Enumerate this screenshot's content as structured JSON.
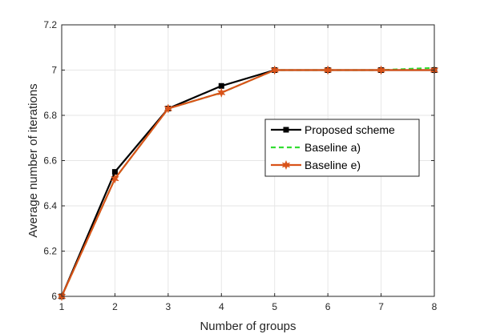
{
  "chart_data": {
    "type": "line",
    "xlabel": "Number of groups",
    "ylabel": "Average number of iterations",
    "xlim": [
      1,
      8
    ],
    "ylim": [
      6,
      7.2
    ],
    "x_ticks": [
      "1",
      "2",
      "3",
      "4",
      "5",
      "6",
      "7",
      "8"
    ],
    "y_ticks": [
      "6",
      "6.2",
      "6.4",
      "6.6",
      "6.8",
      "7",
      "7.2"
    ],
    "grid": true,
    "legend_position": "right-middle",
    "x": [
      1,
      2,
      3,
      4,
      5,
      6,
      7,
      8
    ],
    "series": [
      {
        "name": "Proposed scheme",
        "values": [
          6.0,
          6.55,
          6.83,
          6.93,
          7.0,
          7.0,
          7.0,
          7.0
        ],
        "color": "#000000",
        "line_style": "solid",
        "marker": "square"
      },
      {
        "name": "Baseline a)",
        "values": [
          6.0,
          6.52,
          6.83,
          6.9,
          7.0,
          7.0,
          7.0,
          7.01
        ],
        "color": "#33dd33",
        "line_style": "dashed",
        "marker": "none"
      },
      {
        "name": "Baseline e)",
        "values": [
          6.0,
          6.52,
          6.83,
          6.9,
          7.0,
          7.0,
          7.0,
          7.0
        ],
        "color": "#d95319",
        "line_style": "solid",
        "marker": "star"
      }
    ]
  }
}
